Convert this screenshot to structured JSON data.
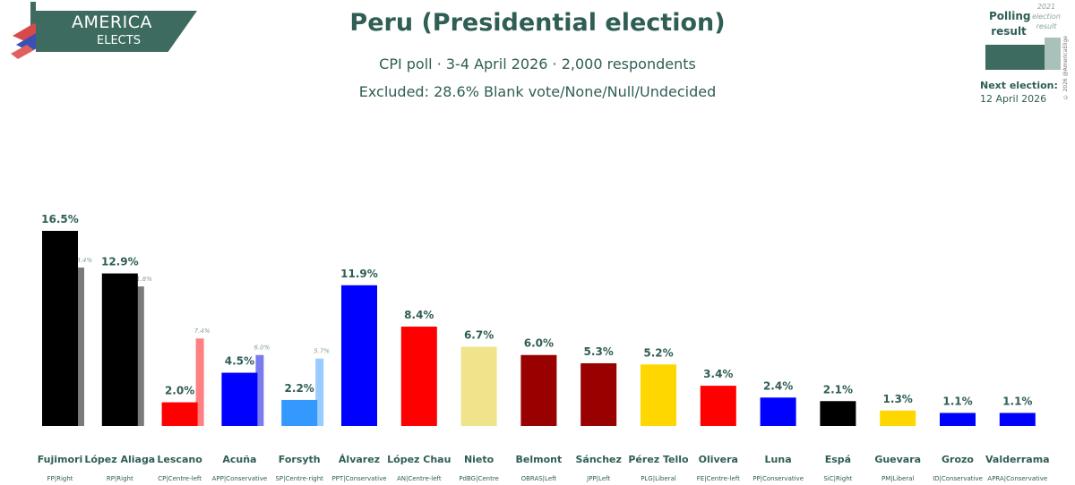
{
  "brand": {
    "line1": "AMERICA",
    "line2": "ELECTS"
  },
  "header": {
    "title": "Peru (Presidential election)",
    "poll_line": "CPI poll · 3-4 April 2026 · 2,000 respondents",
    "excluded_line": "Excluded: 28.6% Blank vote/None/Null/Undecided"
  },
  "legend": {
    "polling_label": "Polling result",
    "prev_label": "2021 election result",
    "copyright": "© 2026 @AmericaElige",
    "next_election_label": "Next election:",
    "next_election_date": "12 April 2026",
    "polling_color": "#3d6b5f",
    "prev_color": "#a9c1ba"
  },
  "chart_data": {
    "type": "bar",
    "title": "Peru (Presidential election)",
    "ylim": [
      0,
      17
    ],
    "candidates": [
      {
        "name": "Fujimori",
        "party": "FP|Right",
        "value": 16.5,
        "label": "16.5%",
        "prev": 13.4,
        "prev_label": "13.4%",
        "color": "#000000",
        "prev_color": "#7a7a7a"
      },
      {
        "name": "López Aliaga",
        "party": "RP|Right",
        "value": 12.9,
        "label": "12.9%",
        "prev": 11.8,
        "prev_label": "11.8%",
        "color": "#000000",
        "prev_color": "#7a7a7a"
      },
      {
        "name": "Lescano",
        "party": "CP|Centre-left",
        "value": 2.0,
        "label": "2.0%",
        "prev": 7.4,
        "prev_label": "7.4%",
        "color": "#ff0000",
        "prev_color": "#ff8080"
      },
      {
        "name": "Acuña",
        "party": "APP|Conservative",
        "value": 4.5,
        "label": "4.5%",
        "prev": 6.0,
        "prev_label": "6.0%",
        "color": "#0000ff",
        "prev_color": "#7b7bf0"
      },
      {
        "name": "Forsyth",
        "party": "SP|Centre-right",
        "value": 2.2,
        "label": "2.2%",
        "prev": 5.7,
        "prev_label": "5.7%",
        "color": "#3399ff",
        "prev_color": "#99ccff"
      },
      {
        "name": "Álvarez",
        "party": "PPT|Conservative",
        "value": 11.9,
        "label": "11.9%",
        "prev": null,
        "prev_label": "",
        "color": "#0000ff",
        "prev_color": ""
      },
      {
        "name": "López Chau",
        "party": "AN|Centre-left",
        "value": 8.4,
        "label": "8.4%",
        "prev": null,
        "prev_label": "",
        "color": "#ff0000",
        "prev_color": ""
      },
      {
        "name": "Nieto",
        "party": "PdBG|Centre",
        "value": 6.7,
        "label": "6.7%",
        "prev": null,
        "prev_label": "",
        "color": "#efe48c",
        "prev_color": ""
      },
      {
        "name": "Belmont",
        "party": "OBRAS|Left",
        "value": 6.0,
        "label": "6.0%",
        "prev": null,
        "prev_label": "",
        "color": "#990000",
        "prev_color": ""
      },
      {
        "name": "Sánchez",
        "party": "JPP|Left",
        "value": 5.3,
        "label": "5.3%",
        "prev": null,
        "prev_label": "",
        "color": "#990000",
        "prev_color": ""
      },
      {
        "name": "Pérez Tello",
        "party": "PLG|Liberal",
        "value": 5.2,
        "label": "5.2%",
        "prev": null,
        "prev_label": "",
        "color": "#ffd700",
        "prev_color": ""
      },
      {
        "name": "Olivera",
        "party": "FE|Centre-left",
        "value": 3.4,
        "label": "3.4%",
        "prev": null,
        "prev_label": "",
        "color": "#ff0000",
        "prev_color": ""
      },
      {
        "name": "Luna",
        "party": "PP|Conservative",
        "value": 2.4,
        "label": "2.4%",
        "prev": null,
        "prev_label": "",
        "color": "#0000ff",
        "prev_color": ""
      },
      {
        "name": "Espá",
        "party": "SiC|Right",
        "value": 2.1,
        "label": "2.1%",
        "prev": null,
        "prev_label": "",
        "color": "#000000",
        "prev_color": ""
      },
      {
        "name": "Guevara",
        "party": "PM|Liberal",
        "value": 1.3,
        "label": "1.3%",
        "prev": null,
        "prev_label": "",
        "color": "#ffd700",
        "prev_color": ""
      },
      {
        "name": "Grozo",
        "party": "ID|Conservative",
        "value": 1.1,
        "label": "1.1%",
        "prev": null,
        "prev_label": "",
        "color": "#0000ff",
        "prev_color": ""
      },
      {
        "name": "Valderrama",
        "party": "APRA|Conservative",
        "value": 1.1,
        "label": "1.1%",
        "prev": null,
        "prev_label": "",
        "color": "#0000ff",
        "prev_color": ""
      }
    ]
  }
}
